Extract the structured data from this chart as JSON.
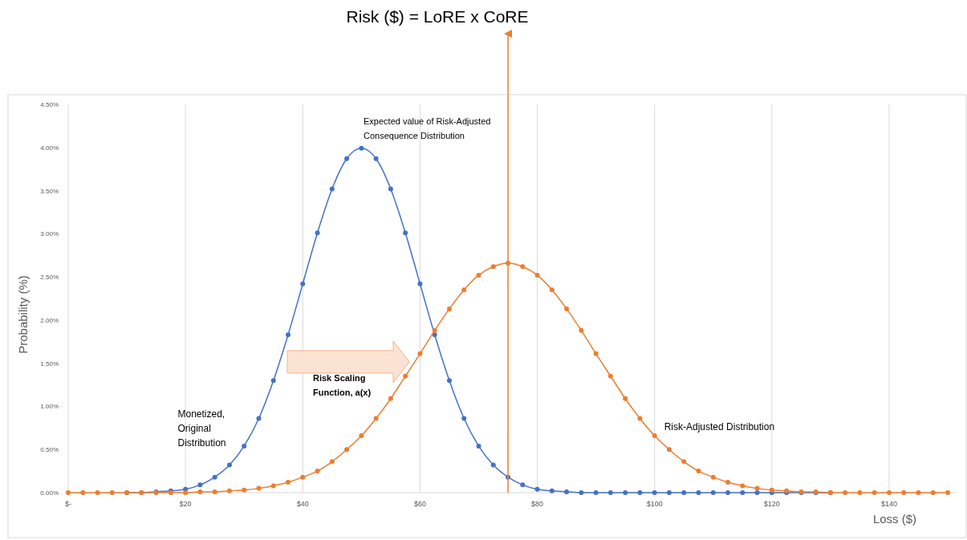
{
  "chart_data": {
    "type": "line",
    "title": "Risk ($) = LoRE x CoRE",
    "xlabel": "Loss ($)",
    "ylabel": "Probability (%)",
    "x": [
      0,
      2.5,
      5,
      7.5,
      10,
      12.5,
      15,
      17.5,
      20,
      22.5,
      25,
      27.5,
      30,
      32.5,
      35,
      37.5,
      40,
      42.5,
      45,
      47.5,
      50,
      52.5,
      55,
      57.5,
      60,
      62.5,
      65,
      67.5,
      70,
      72.5,
      75,
      77.5,
      80,
      82.5,
      85,
      87.5,
      90,
      92.5,
      95,
      97.5,
      100,
      102.5,
      105,
      107.5,
      110,
      112.5,
      115,
      117.5,
      120,
      122.5,
      125,
      127.5,
      130,
      132.5,
      135,
      137.5,
      140,
      142.5,
      145,
      147.5,
      150
    ],
    "series": [
      {
        "name": "Monetized, Original Distribution",
        "color": "#4472c4",
        "values": [
          null,
          null,
          null,
          null,
          0,
          0,
          0.01,
          0.02,
          0.04,
          0.09,
          0.18,
          0.32,
          0.54,
          0.86,
          1.3,
          1.83,
          2.42,
          3.01,
          3.52,
          3.87,
          3.99,
          3.87,
          3.52,
          3.01,
          2.42,
          1.83,
          1.3,
          0.86,
          0.54,
          0.32,
          0.18,
          0.09,
          0.04,
          0.02,
          0.01,
          0,
          0,
          0,
          0,
          0,
          0,
          0,
          0,
          0,
          0,
          0,
          0,
          0,
          0,
          0,
          0,
          0,
          0,
          null,
          null,
          null,
          null,
          null,
          null,
          null,
          null
        ]
      },
      {
        "name": "Risk-Adjusted Distribution",
        "color": "#ed7d31",
        "values": [
          0,
          0,
          0,
          0,
          0,
          0,
          0,
          0,
          0,
          0.01,
          0.01,
          0.02,
          0.03,
          0.05,
          0.08,
          0.12,
          0.18,
          0.25,
          0.36,
          0.5,
          0.66,
          0.86,
          1.09,
          1.35,
          1.61,
          1.88,
          2.13,
          2.35,
          2.52,
          2.62,
          2.66,
          2.62,
          2.52,
          2.35,
          2.13,
          1.88,
          1.61,
          1.35,
          1.09,
          0.86,
          0.66,
          0.5,
          0.36,
          0.25,
          0.18,
          0.12,
          0.08,
          0.05,
          0.03,
          0.02,
          0.01,
          0.01,
          0,
          0,
          0,
          0,
          0,
          0,
          0,
          0,
          0
        ]
      }
    ],
    "xlim": [
      0,
      151.5
    ],
    "xticks": [
      {
        "value": 0,
        "label": "$-"
      },
      {
        "value": 20,
        "label": "$20"
      },
      {
        "value": 40,
        "label": "$40"
      },
      {
        "value": 60,
        "label": "$60"
      },
      {
        "value": 80,
        "label": "$80"
      },
      {
        "value": 100,
        "label": "$100"
      },
      {
        "value": 120,
        "label": "$120"
      },
      {
        "value": 140,
        "label": "$140"
      }
    ],
    "ylim": [
      0,
      4.5
    ],
    "yticks": [
      {
        "value": 0,
        "label": "0.00%"
      },
      {
        "value": 0.5,
        "label": "0.50%"
      },
      {
        "value": 1,
        "label": "1.00%"
      },
      {
        "value": 1.5,
        "label": "1.50%"
      },
      {
        "value": 2,
        "label": "2.00%"
      },
      {
        "value": 2.5,
        "label": "2.50%"
      },
      {
        "value": 3,
        "label": "3.00%"
      },
      {
        "value": 3.5,
        "label": "3.50%"
      },
      {
        "value": 4,
        "label": "4.00%"
      },
      {
        "value": 4.5,
        "label": "4.50%"
      }
    ],
    "grid": "x",
    "marker": "circle",
    "line_style": "solid",
    "ref_lines": [
      {
        "axis": "x",
        "value": 75,
        "label": "Expected value of Risk-Adjusted Consequence Distribution",
        "color": "#ed7d31"
      }
    ],
    "annotations": [
      "Risk Scaling Function, a(x)"
    ]
  }
}
